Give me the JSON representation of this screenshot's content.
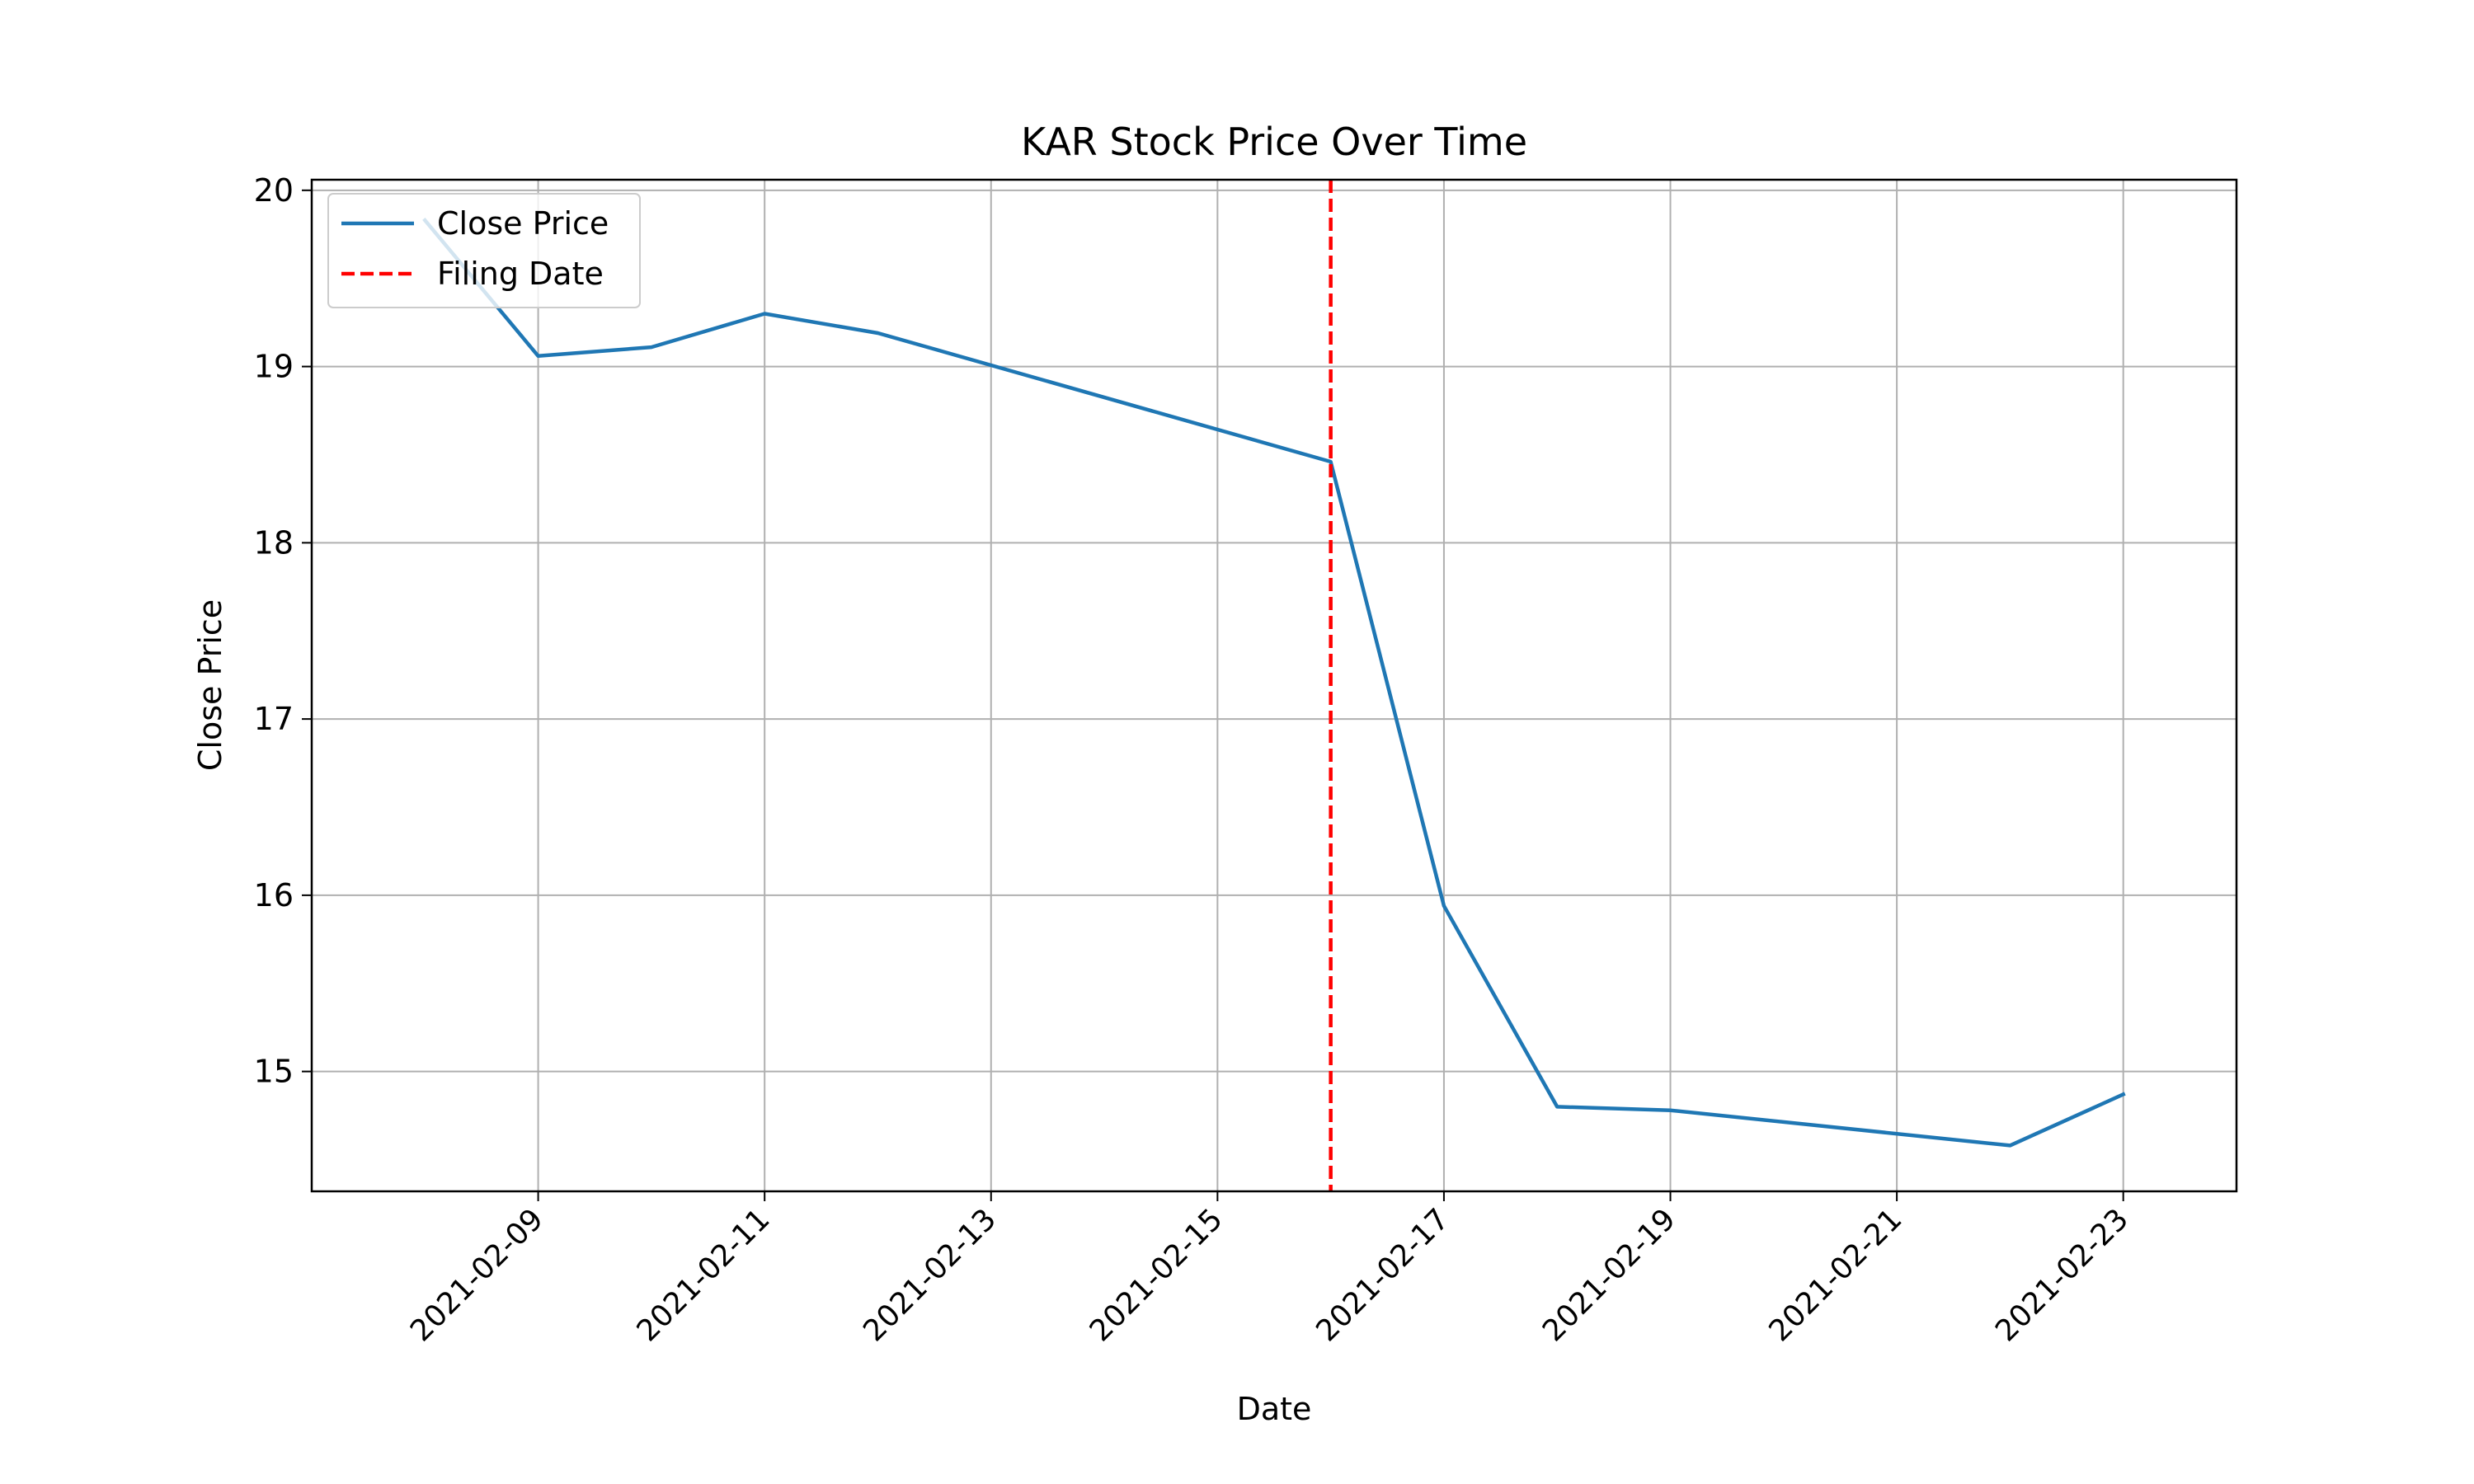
{
  "chart_data": {
    "type": "line",
    "title": "KAR Stock Price Over Time",
    "xlabel": "Date",
    "ylabel": "Close Price",
    "x_tick_labels": [
      "2021-02-09",
      "2021-02-11",
      "2021-02-13",
      "2021-02-15",
      "2021-02-17",
      "2021-02-19",
      "2021-02-21",
      "2021-02-23"
    ],
    "y_tick_labels": [
      "15",
      "16",
      "17",
      "18",
      "19",
      "20"
    ],
    "xlim": [
      "2021-02-07",
      "2021-02-24"
    ],
    "ylim": [
      14.32,
      20.06
    ],
    "grid": true,
    "legend_position": "upper-left",
    "series": [
      {
        "name": "Close Price",
        "color": "#1f77b4",
        "style": "solid",
        "x": [
          "2021-02-08",
          "2021-02-09",
          "2021-02-10",
          "2021-02-11",
          "2021-02-12",
          "2021-02-16",
          "2021-02-17",
          "2021-02-18",
          "2021-02-19",
          "2021-02-22",
          "2021-02-23"
        ],
        "y": [
          19.83,
          19.06,
          19.11,
          19.3,
          19.19,
          18.46,
          15.94,
          14.8,
          14.78,
          14.58,
          14.87
        ]
      }
    ],
    "vlines": [
      {
        "name": "Filing Date",
        "x": "2021-02-16",
        "color": "#ff0000",
        "style": "dashed"
      }
    ]
  }
}
